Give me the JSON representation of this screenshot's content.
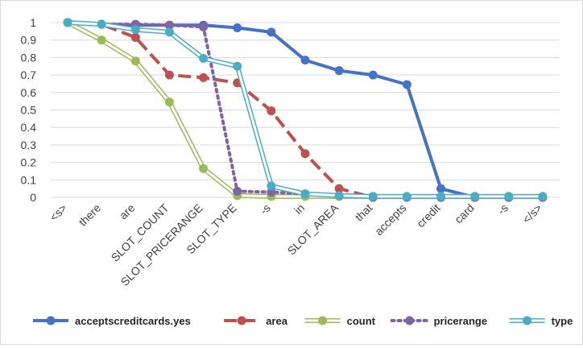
{
  "chart_data": {
    "type": "line",
    "title": "",
    "xlabel": "",
    "ylabel": "",
    "ylim": [
      0,
      1
    ],
    "yticks": [
      0,
      0.1,
      0.2,
      0.3,
      0.4,
      0.5,
      0.6,
      0.7,
      0.8,
      0.9,
      1
    ],
    "ytick_labels": [
      "0",
      "0.1",
      "0.2",
      "0.3",
      "0.4",
      "0.5",
      "0.6",
      "0.7",
      "0.8",
      "0.9",
      "1"
    ],
    "grid": true,
    "legend_position": "bottom",
    "categories": [
      "<s>",
      "there",
      "are",
      "SLOT_COUNT",
      "SLOT_PRICERANGE",
      "SLOT_TYPE",
      "-s",
      "in",
      "SLOT_AREA",
      "that",
      "accepts",
      "credit",
      "card",
      "-s",
      "</s>"
    ],
    "series": [
      {
        "name": "acceptscreditcards.yes",
        "color": "#4472c4",
        "style": "solid",
        "values": [
          1.0,
          0.99,
          0.985,
          0.985,
          0.985,
          0.97,
          0.945,
          0.785,
          0.725,
          0.7,
          0.645,
          0.05,
          0.0,
          0.0,
          0.0
        ]
      },
      {
        "name": "area",
        "color": "#c0504d",
        "style": "dashed",
        "values": [
          1.0,
          0.99,
          0.915,
          0.7,
          0.685,
          0.655,
          0.495,
          0.25,
          0.05,
          0.0,
          0.0,
          0.0,
          0.0,
          0.0,
          0.0
        ]
      },
      {
        "name": "count",
        "color": "#9bbb59",
        "style": "double",
        "values": [
          1.0,
          0.9,
          0.78,
          0.545,
          0.165,
          0.01,
          0.005,
          0.005,
          0.005,
          0.005,
          0.005,
          0.005,
          0.005,
          0.005,
          0.005
        ]
      },
      {
        "name": "pricerange",
        "color": "#8064a2",
        "style": "dotted",
        "values": [
          1.0,
          0.99,
          0.99,
          0.985,
          0.975,
          0.035,
          0.03,
          0.02,
          0.01,
          0.0,
          0.0,
          0.0,
          0.0,
          0.0,
          0.0
        ]
      },
      {
        "name": "type",
        "color": "#4bacc6",
        "style": "double",
        "values": [
          1.0,
          0.99,
          0.96,
          0.945,
          0.795,
          0.75,
          0.065,
          0.02,
          0.01,
          0.005,
          0.005,
          0.005,
          0.005,
          0.005,
          0.005
        ]
      }
    ]
  }
}
